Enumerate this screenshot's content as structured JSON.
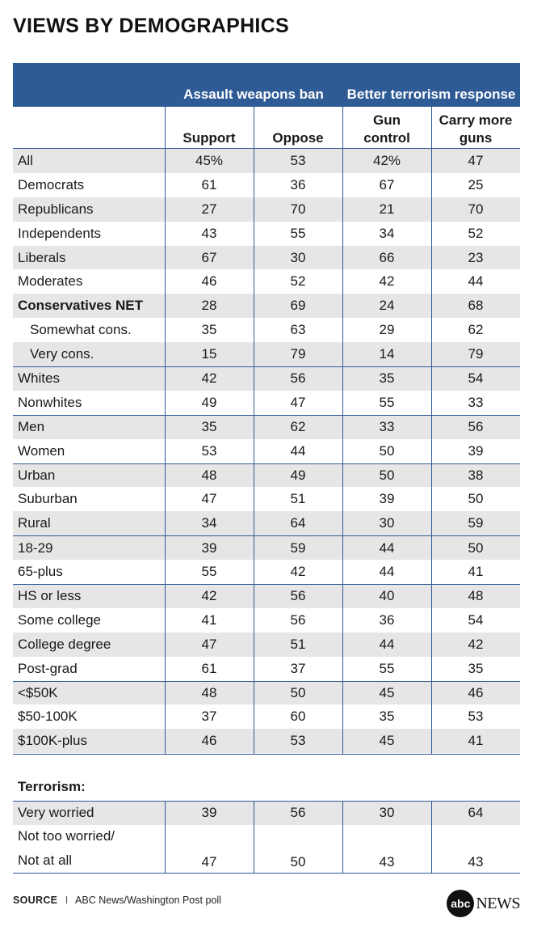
{
  "title": "VIEWS BY DEMOGRAPHICS",
  "chart_data": {
    "type": "table",
    "title": "VIEWS BY DEMOGRAPHICS",
    "column_groups": [
      {
        "label": "Assault weapons ban",
        "columns": [
          "Support",
          "Oppose"
        ]
      },
      {
        "label": "Better terrorism response",
        "columns": [
          "Gun control",
          "Carry more guns"
        ]
      }
    ],
    "columns": [
      "Support",
      "Oppose",
      "Gun control",
      "Carry more guns"
    ],
    "rows": [
      {
        "label": "All",
        "values": [
          "45%",
          "53",
          "42%",
          "47"
        ]
      },
      {
        "label": "Democrats",
        "values": [
          "61",
          "36",
          "67",
          "25"
        ]
      },
      {
        "label": "Republicans",
        "values": [
          "27",
          "70",
          "21",
          "70"
        ]
      },
      {
        "label": "Independents",
        "values": [
          "43",
          "55",
          "34",
          "52"
        ]
      },
      {
        "label": "Liberals",
        "values": [
          "67",
          "30",
          "66",
          "23"
        ]
      },
      {
        "label": "Moderates",
        "values": [
          "46",
          "52",
          "42",
          "44"
        ]
      },
      {
        "label": "Conservatives NET",
        "values": [
          "28",
          "69",
          "24",
          "68"
        ]
      },
      {
        "label": "Somewhat cons.",
        "values": [
          "35",
          "63",
          "29",
          "62"
        ]
      },
      {
        "label": "Very cons.",
        "values": [
          "15",
          "79",
          "14",
          "79"
        ]
      },
      {
        "label": "Whites",
        "values": [
          "42",
          "56",
          "35",
          "54"
        ]
      },
      {
        "label": "Nonwhites",
        "values": [
          "49",
          "47",
          "55",
          "33"
        ]
      },
      {
        "label": "Men",
        "values": [
          "35",
          "62",
          "33",
          "56"
        ]
      },
      {
        "label": "Women",
        "values": [
          "53",
          "44",
          "50",
          "39"
        ]
      },
      {
        "label": "Urban",
        "values": [
          "48",
          "49",
          "50",
          "38"
        ]
      },
      {
        "label": "Suburban",
        "values": [
          "47",
          "51",
          "39",
          "50"
        ]
      },
      {
        "label": "Rural",
        "values": [
          "34",
          "64",
          "30",
          "59"
        ]
      },
      {
        "label": "18-29",
        "values": [
          "39",
          "59",
          "44",
          "50"
        ]
      },
      {
        "label": "65-plus",
        "values": [
          "55",
          "42",
          "44",
          "41"
        ]
      },
      {
        "label": "HS or less",
        "values": [
          "42",
          "56",
          "40",
          "48"
        ]
      },
      {
        "label": "Some college",
        "values": [
          "41",
          "56",
          "36",
          "54"
        ]
      },
      {
        "label": "College degree",
        "values": [
          "47",
          "51",
          "44",
          "42"
        ]
      },
      {
        "label": "Post-grad",
        "values": [
          "61",
          "37",
          "55",
          "35"
        ]
      },
      {
        "label": "<$50K",
        "values": [
          "48",
          "50",
          "45",
          "46"
        ]
      },
      {
        "label": "$50-100K",
        "values": [
          "37",
          "60",
          "35",
          "53"
        ]
      },
      {
        "label": "$100K-plus",
        "values": [
          "46",
          "53",
          "45",
          "41"
        ]
      }
    ],
    "terrorism_section": {
      "label": "Terrorism:",
      "rows": [
        {
          "label": "Very worried",
          "values": [
            "39",
            "56",
            "30",
            "64"
          ]
        },
        {
          "label_lines": [
            "Not too worried/",
            "Not at all"
          ],
          "values": [
            "47",
            "50",
            "43",
            "43"
          ]
        }
      ]
    }
  },
  "source": {
    "label": "SOURCE",
    "separator": "I",
    "text": "ABC News/Washington Post poll"
  },
  "logo": {
    "mark": "abc",
    "text": "NEWS"
  },
  "colors": {
    "header": "#2e5b95",
    "shade": "#e6e6e6"
  }
}
